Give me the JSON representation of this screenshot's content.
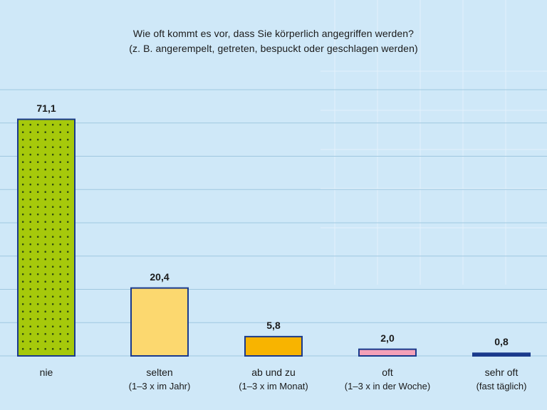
{
  "title": "Wie oft kommt es vor, dass Sie körperlich angegriffen werden?",
  "subtitle": "(z. B. angerempelt, getreten, bespuckt oder geschlagen werden)",
  "colors": {
    "background": "#cfe8f8",
    "gridline": "#9fc7df",
    "bar_outline": "#1a3a8c",
    "nie": "#a6c90b",
    "nie_dots": "#2f4a10",
    "selten": "#fcd86f",
    "ab_und_zu": "#f8b400",
    "oft": "#f4a0b8",
    "sehr_oft": "#1a3a8c"
  },
  "chart_data": {
    "type": "bar",
    "title": "Wie oft kommt es vor, dass Sie körperlich angegriffen werden?",
    "subtitle": "(z. B. angerempelt, getreten, bespuckt oder geschlagen werden)",
    "categories": [
      {
        "label": "nie",
        "sub": ""
      },
      {
        "label": "selten",
        "sub": "(1–3 x im Jahr)"
      },
      {
        "label": "ab und zu",
        "sub": "(1–3 x im Monat)"
      },
      {
        "label": "oft",
        "sub": "(1–3 x in der Woche)"
      },
      {
        "label": "sehr oft",
        "sub": "(fast täglich)"
      }
    ],
    "values": [
      71.1,
      20.4,
      5.8,
      2.0,
      0.8
    ],
    "value_labels": [
      "71,1",
      "20,4",
      "5,8",
      "2,0",
      "0,8"
    ],
    "ylim": [
      0,
      80
    ],
    "grid": true,
    "legend": "none"
  }
}
